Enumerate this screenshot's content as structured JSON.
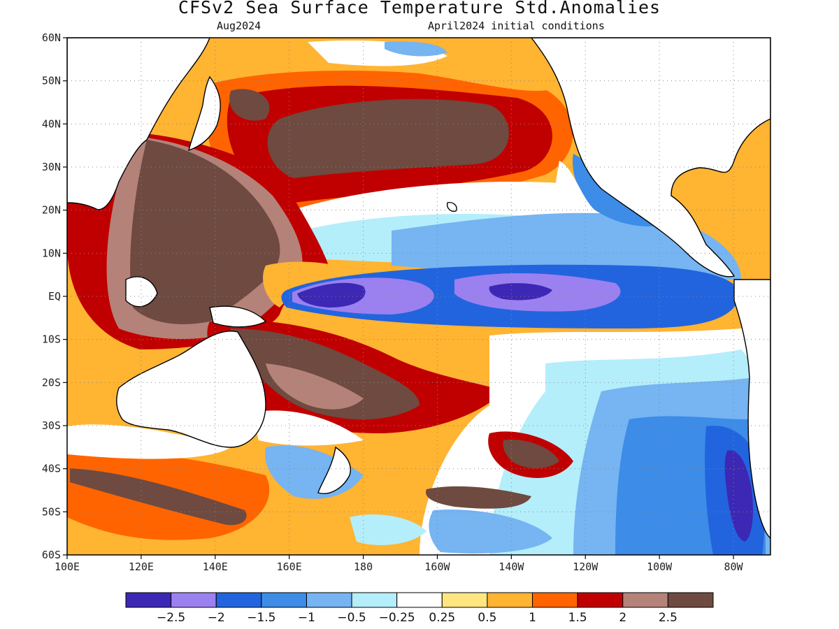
{
  "title": "CFSv2 Sea Surface Temperature Std.Anomalies",
  "subtitle_left": "Aug2024",
  "subtitle_right": "April2024 initial conditions",
  "map": {
    "lon_range_east": [
      100,
      290
    ],
    "lat_range": [
      -60,
      60
    ],
    "lat_ticks": [
      "60N",
      "50N",
      "40N",
      "30N",
      "20N",
      "10N",
      "EQ",
      "10S",
      "20S",
      "30S",
      "40S",
      "50S",
      "60S"
    ],
    "lon_ticks": [
      "100E",
      "120E",
      "140E",
      "160E",
      "180",
      "160W",
      "140W",
      "120W",
      "100W",
      "80W"
    ],
    "grid": "dotted"
  },
  "colorbar": {
    "colors": [
      "#3c28b4",
      "#9b80f0",
      "#2264de",
      "#3c8ce8",
      "#76b4f2",
      "#b4eefa",
      "#ffffff",
      "#ffe680",
      "#ffb432",
      "#ff6400",
      "#c00000",
      "#b48278",
      "#6e4a40"
    ],
    "labels": [
      "-2.5",
      "-2",
      "-1.5",
      "-1",
      "-0.5",
      "-0.25",
      "0.25",
      "0.5",
      "1",
      "1.5",
      "2",
      "2.5"
    ]
  },
  "features": [
    {
      "name": "equatorial-cold-tongue",
      "anomaly": -2.5
    },
    {
      "name": "western-pacific-warm-pool",
      "anomaly": 2.5
    },
    {
      "name": "north-pacific-warm-band",
      "anomaly": 2.5
    },
    {
      "name": "south-pacific-warm-band",
      "anomaly": 2.5
    },
    {
      "name": "southeast-pacific-cold-region",
      "anomaly": -1.5
    },
    {
      "name": "chile-coast-cold-patch",
      "anomaly": -2.5
    }
  ]
}
